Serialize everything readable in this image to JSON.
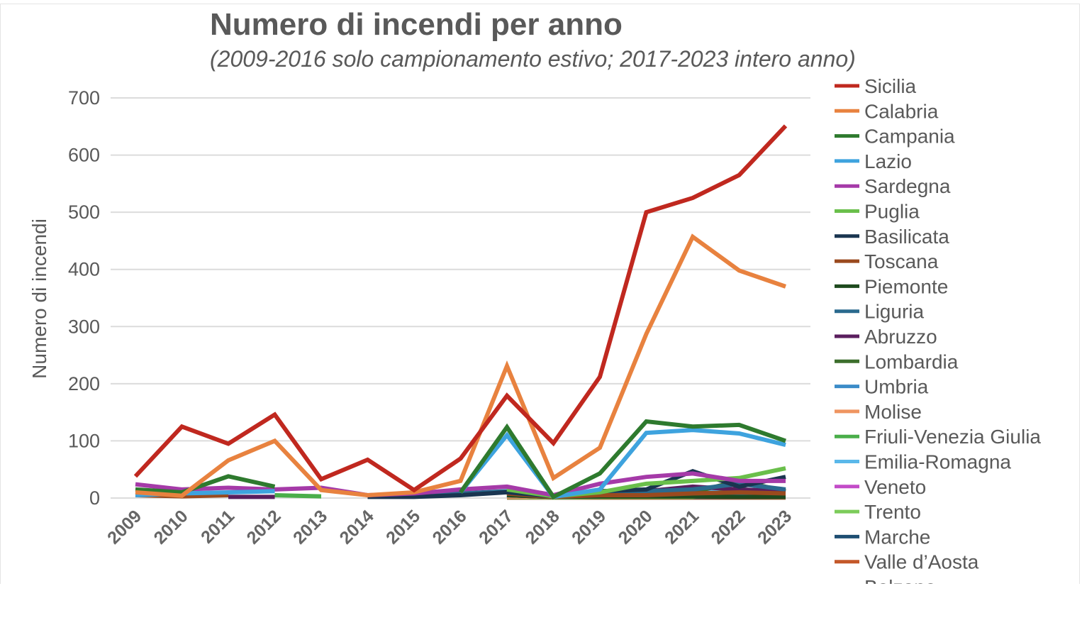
{
  "chart_data": {
    "type": "line",
    "title": "Numero di incendi per anno",
    "subtitle": "(2009-2016 solo campionamento estivo; 2017-2023 intero anno)",
    "xlabel": "",
    "ylabel": "Numero di incendi",
    "ylim": [
      0,
      700
    ],
    "yticks": [
      0,
      100,
      200,
      300,
      400,
      500,
      600,
      700
    ],
    "grid": true,
    "legend_position": "right",
    "categories": [
      "2009",
      "2010",
      "2011",
      "2012",
      "2013",
      "2014",
      "2015",
      "2016",
      "2017",
      "2018",
      "2019",
      "2020",
      "2021",
      "2022",
      "2023"
    ],
    "series": [
      {
        "name": "Sicilia",
        "color": "#c0281f",
        "values": [
          38,
          125,
          95,
          146,
          33,
          67,
          14,
          69,
          179,
          96,
          212,
          500,
          525,
          565,
          651
        ]
      },
      {
        "name": "Calabria",
        "color": "#e8823f",
        "values": [
          10,
          4,
          66,
          100,
          14,
          5,
          10,
          30,
          231,
          35,
          88,
          287,
          457,
          398,
          370
        ]
      },
      {
        "name": "Campania",
        "color": "#2e7a2e",
        "values": [
          15,
          10,
          38,
          20,
          null,
          null,
          null,
          10,
          124,
          2,
          43,
          134,
          125,
          128,
          100
        ]
      },
      {
        "name": "Lazio",
        "color": "#3ea3de",
        "values": [
          5,
          8,
          10,
          12,
          null,
          null,
          null,
          10,
          110,
          2,
          15,
          114,
          119,
          113,
          93
        ]
      },
      {
        "name": "Sardegna",
        "color": "#a53aa8",
        "values": [
          24,
          15,
          18,
          15,
          18,
          5,
          8,
          15,
          20,
          5,
          25,
          37,
          43,
          30,
          30
        ]
      },
      {
        "name": "Puglia",
        "color": "#6abf4b",
        "values": [
          null,
          null,
          null,
          null,
          null,
          null,
          null,
          null,
          15,
          3,
          10,
          25,
          30,
          35,
          52
        ]
      },
      {
        "name": "Basilicata",
        "color": "#1a3550",
        "values": [
          null,
          null,
          null,
          null,
          null,
          2,
          2,
          5,
          10,
          3,
          12,
          15,
          47,
          20,
          37
        ]
      },
      {
        "name": "Toscana",
        "color": "#9a4a1e",
        "values": [
          5,
          3,
          5,
          null,
          null,
          null,
          null,
          null,
          8,
          2,
          5,
          5,
          8,
          10,
          8
        ]
      },
      {
        "name": "Piemonte",
        "color": "#1e4a1e",
        "values": [
          null,
          null,
          null,
          null,
          null,
          null,
          null,
          null,
          5,
          2,
          3,
          3,
          3,
          2,
          2
        ]
      },
      {
        "name": "Liguria",
        "color": "#2a6a8e",
        "values": [
          null,
          null,
          null,
          null,
          null,
          null,
          5,
          8,
          12,
          2,
          10,
          12,
          15,
          25,
          15
        ]
      },
      {
        "name": "Abruzzo",
        "color": "#5a1e5e",
        "values": [
          null,
          null,
          2,
          2,
          null,
          null,
          null,
          null,
          5,
          2,
          8,
          12,
          20,
          15,
          12
        ]
      },
      {
        "name": "Lombardia",
        "color": "#3c6e2c",
        "values": [
          null,
          null,
          null,
          null,
          null,
          null,
          null,
          null,
          8,
          2,
          5,
          8,
          10,
          30,
          12
        ]
      },
      {
        "name": "Umbria",
        "color": "#3b8cc8",
        "values": [
          null,
          null,
          null,
          null,
          null,
          null,
          null,
          null,
          5,
          2,
          3,
          5,
          5,
          5,
          5
        ]
      },
      {
        "name": "Molise",
        "color": "#ef9560",
        "values": [
          null,
          null,
          null,
          null,
          null,
          null,
          null,
          null,
          3,
          2,
          5,
          5,
          8,
          5,
          5
        ]
      },
      {
        "name": "Friuli-Venezia Giulia",
        "color": "#4aae4a",
        "values": [
          null,
          null,
          null,
          5,
          3,
          null,
          null,
          null,
          10,
          2,
          2,
          2,
          2,
          15,
          10
        ]
      },
      {
        "name": "Emilia-Romagna",
        "color": "#5ab8ea",
        "values": [
          null,
          null,
          null,
          null,
          null,
          null,
          null,
          null,
          5,
          2,
          5,
          8,
          10,
          15,
          12
        ]
      },
      {
        "name": "Veneto",
        "color": "#c34cc8",
        "values": [
          null,
          null,
          null,
          null,
          null,
          null,
          null,
          null,
          3,
          2,
          3,
          5,
          5,
          5,
          5
        ]
      },
      {
        "name": "Trento",
        "color": "#7ccc5a",
        "values": [
          null,
          null,
          null,
          null,
          null,
          null,
          null,
          null,
          2,
          1,
          2,
          3,
          3,
          3,
          3
        ]
      },
      {
        "name": "Marche",
        "color": "#1e4e72",
        "values": [
          null,
          null,
          null,
          null,
          null,
          null,
          null,
          null,
          5,
          2,
          5,
          5,
          2,
          2,
          2
        ]
      },
      {
        "name": "Valle d’Aosta",
        "color": "#c4582a",
        "values": [
          null,
          null,
          null,
          null,
          null,
          null,
          null,
          null,
          1,
          1,
          1,
          1,
          1,
          1,
          1
        ]
      },
      {
        "name": "Bolzano",
        "color": "#2a5e2a",
        "values": [
          null,
          null,
          null,
          null,
          null,
          null,
          null,
          null,
          1,
          1,
          1,
          1,
          1,
          1,
          1
        ]
      }
    ]
  }
}
